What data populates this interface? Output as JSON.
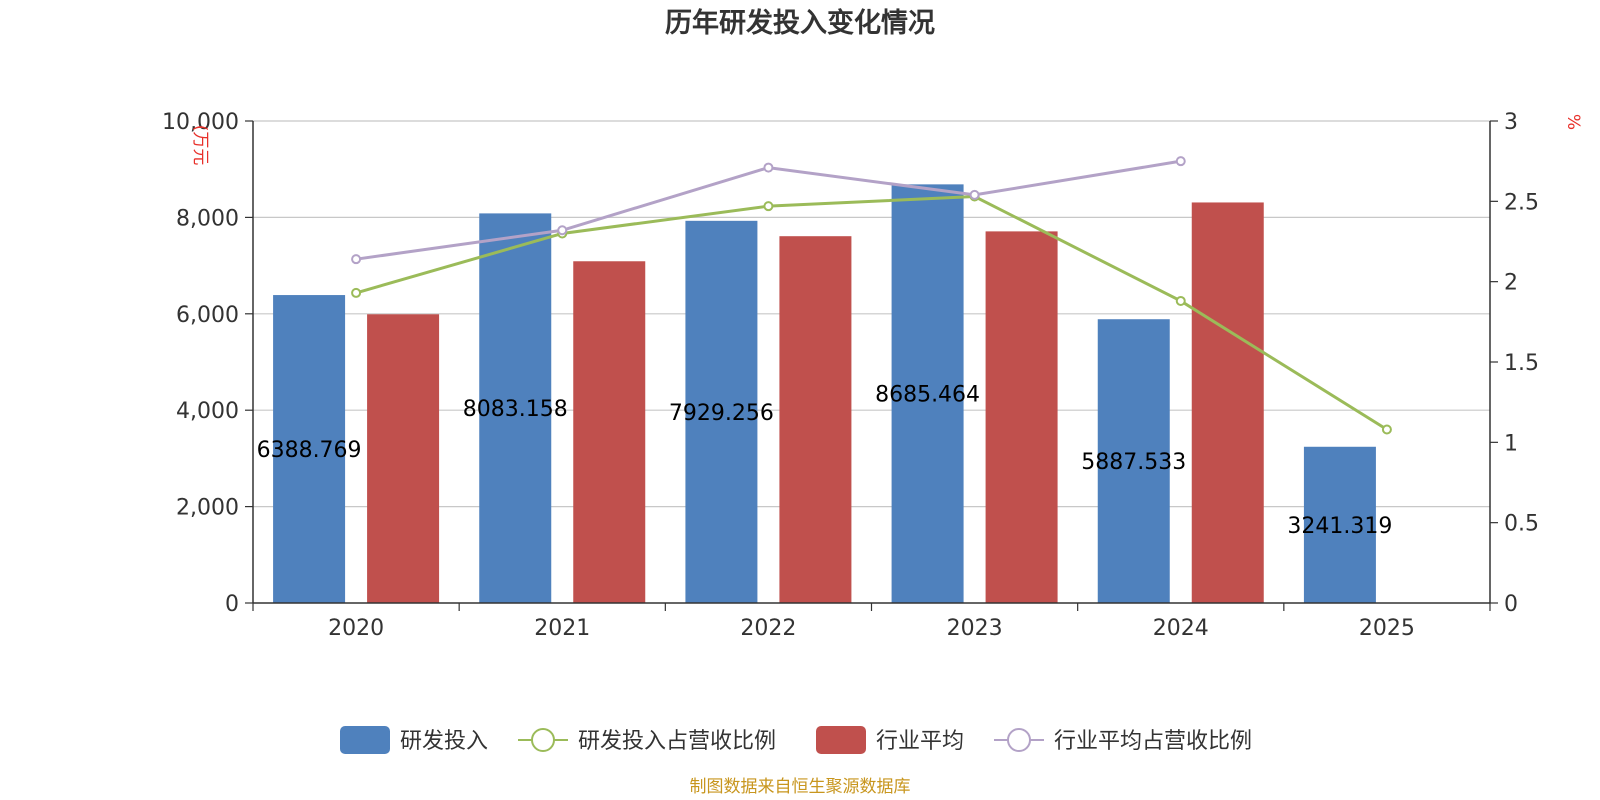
{
  "chart_data": {
    "type": "bar",
    "title": "历年研发投入变化情况",
    "categories": [
      "2020",
      "2021",
      "2022",
      "2023",
      "2024",
      "2025"
    ],
    "y_left": {
      "unit_label": "(万元",
      "min": 0,
      "max": 10000,
      "ticks": [
        "0",
        "2,000",
        "4,000",
        "6,000",
        "8,000",
        "10,000"
      ]
    },
    "y_right": {
      "unit_label": "%",
      "min": 0,
      "max": 3,
      "ticks": [
        "0",
        "0.5",
        "1",
        "1.5",
        "2",
        "2.5",
        "3"
      ]
    },
    "grid": true,
    "legend_position": "bottom",
    "series": [
      {
        "name": "研发投入",
        "type": "bar",
        "axis": "left",
        "color": "#4f81bd",
        "values": [
          6388.769,
          8083.158,
          7929.256,
          8685.464,
          5887.533,
          3241.319
        ],
        "labels": [
          "6388.769",
          "8083.158",
          "7929.256",
          "8685.464",
          "5887.533",
          "3241.319"
        ]
      },
      {
        "name": "研发投入占营收比例",
        "type": "line",
        "axis": "right",
        "color": "#9bbb59",
        "values": [
          1.93,
          2.3,
          2.47,
          2.53,
          1.88,
          1.08
        ]
      },
      {
        "name": "行业平均",
        "type": "bar",
        "axis": "left",
        "color": "#c0504d",
        "values": [
          5990,
          7090,
          7610,
          7710,
          8310,
          null
        ]
      },
      {
        "name": "行业平均占营收比例",
        "type": "line",
        "axis": "right",
        "color": "#b3a2c7",
        "values": [
          2.14,
          2.32,
          2.71,
          2.54,
          2.75,
          null
        ]
      }
    ]
  },
  "footer": {
    "source": "制图数据来自恒生聚源数据库"
  }
}
